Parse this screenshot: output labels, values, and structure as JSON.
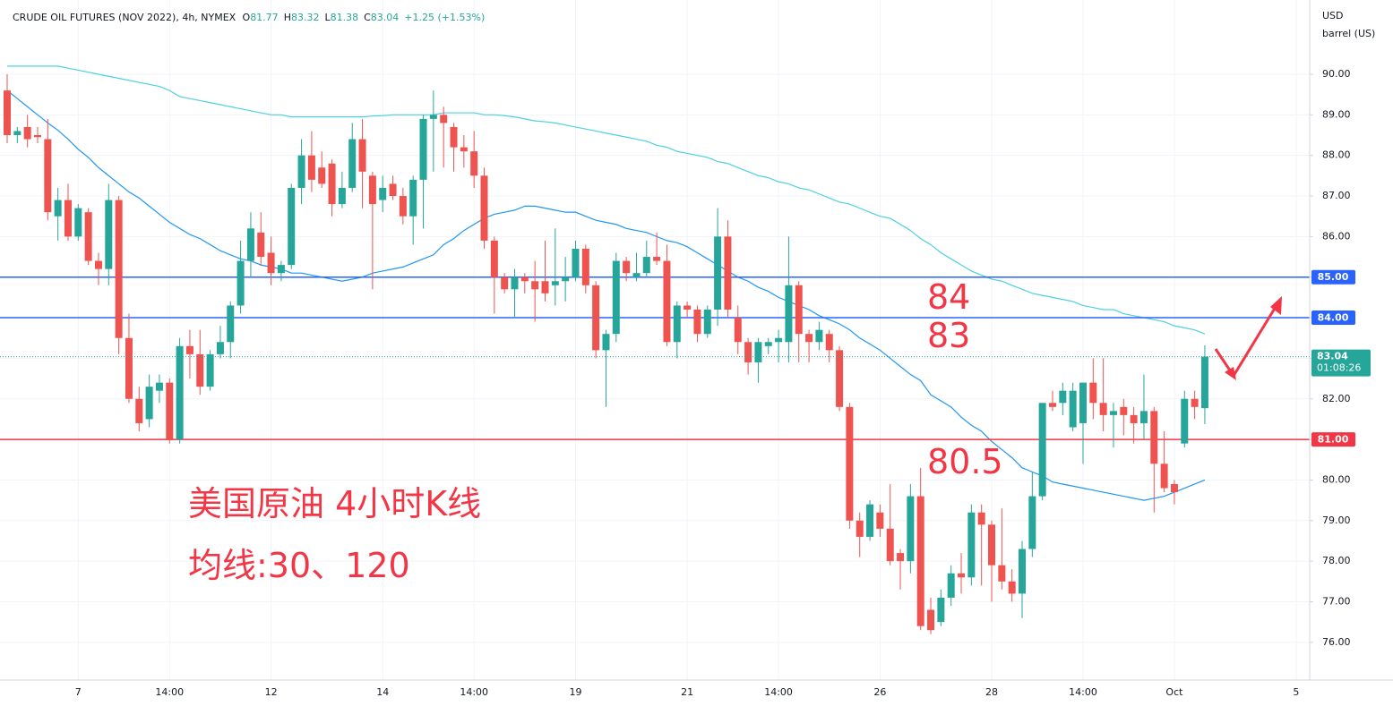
{
  "chart_data": {
    "type": "candlestick",
    "title": "CRUDE OIL FUTURES (NOV 2022), 4h, NYMEX",
    "legend_values": [
      {
        "key": "O",
        "value": 81.77
      },
      {
        "key": "H",
        "value": 83.32
      },
      {
        "key": "L",
        "value": 81.38
      },
      {
        "key": "C",
        "value": 83.04
      }
    ],
    "change": "+1.25 (+1.53%)",
    "unit": [
      "USD",
      "barrel (US)"
    ],
    "categories": [
      null,
      null,
      null,
      null,
      null,
      null,
      null,
      "7",
      null,
      null,
      null,
      null,
      null,
      null,
      null,
      null,
      "14:00",
      null,
      null,
      null,
      null,
      null,
      null,
      null,
      null,
      null,
      "12",
      null,
      null,
      null,
      null,
      null,
      null,
      null,
      null,
      null,
      null,
      "14",
      null,
      null,
      null,
      null,
      null,
      null,
      null,
      null,
      "14:00",
      null,
      null,
      null,
      null,
      null,
      null,
      null,
      null,
      null,
      "19",
      null,
      null,
      null,
      null,
      null,
      null,
      null,
      null,
      null,
      null,
      "21",
      null,
      null,
      null,
      null,
      null,
      null,
      null,
      null,
      "14:00",
      null,
      null,
      null,
      null,
      null,
      null,
      null,
      null,
      null,
      "26",
      null,
      null,
      null,
      null,
      null,
      null,
      null,
      null,
      null,
      null,
      "28",
      null,
      null,
      null,
      null,
      null,
      null,
      null,
      null,
      "14:00",
      null,
      null,
      null,
      null,
      null,
      null,
      null,
      null,
      "Oct",
      null,
      null,
      null,
      null,
      null,
      null,
      null,
      null,
      null,
      null,
      null,
      "5",
      null
    ],
    "ohlc": {
      "up_color": "#26a69a",
      "down_color": "#ef5350",
      "open": [
        89.6,
        88.5,
        88.7,
        88.5,
        88.4,
        86.5,
        86.9,
        86.0,
        86.6,
        85.4,
        85.2,
        86.9,
        83.5,
        82.0,
        81.5,
        82.2,
        82.4,
        81.0,
        83.3,
        83.1,
        82.3,
        83.1,
        83.4,
        84.3,
        85.4,
        86.1,
        85.6,
        85.1,
        85.3,
        87.2,
        88.0,
        87.7,
        87.8,
        86.8,
        87.2,
        88.4,
        87.5,
        86.9,
        87.3,
        87.0,
        86.5,
        87.4,
        88.9,
        89.0,
        88.7,
        88.2,
        88.1,
        87.5,
        85.9,
        85.0,
        84.7,
        85.0,
        84.9,
        84.9,
        84.8,
        84.9,
        85.0,
        85.7,
        84.8,
        83.2,
        83.6,
        85.4,
        85.0,
        85.1,
        85.5,
        85.4,
        83.4,
        84.3,
        84.2,
        83.6,
        84.2,
        86.0,
        84.0,
        83.4,
        82.9,
        83.3,
        83.4,
        83.4,
        84.8,
        83.6,
        83.4,
        83.6,
        83.2,
        81.8,
        79.0,
        78.6,
        79.2,
        78.8,
        78.2,
        78.0,
        79.6,
        76.8,
        76.5,
        77.1,
        77.7,
        77.6,
        79.2,
        78.9,
        77.9,
        77.5,
        77.2,
        78.3,
        79.6,
        81.9,
        81.9,
        81.3,
        81.4,
        82.4,
        81.9,
        81.6,
        81.8,
        81.6,
        81.4,
        81.7,
        80.4,
        79.9,
        80.9,
        82.0,
        81.77,
        null,
        null,
        null,
        null,
        null,
        null,
        null,
        null,
        null,
        null
      ],
      "high": [
        90.0,
        88.7,
        89.0,
        88.7,
        88.9,
        87.2,
        87.3,
        86.8,
        86.7,
        85.6,
        87.3,
        87.0,
        84.1,
        82.3,
        82.6,
        82.6,
        82.5,
        83.5,
        83.7,
        83.7,
        83.2,
        83.8,
        84.4,
        85.9,
        86.6,
        86.6,
        86.0,
        85.4,
        87.3,
        88.4,
        88.6,
        88.1,
        87.9,
        87.6,
        88.8,
        88.9,
        87.6,
        87.5,
        87.5,
        87.2,
        87.5,
        89.0,
        89.6,
        89.2,
        88.8,
        88.5,
        88.6,
        87.7,
        86.0,
        85.1,
        85.2,
        85.1,
        85.4,
        85.9,
        86.2,
        85.5,
        85.9,
        85.8,
        84.9,
        83.7,
        85.6,
        85.5,
        85.6,
        85.9,
        86.1,
        85.8,
        84.4,
        84.4,
        84.3,
        84.3,
        86.7,
        86.4,
        84.3,
        83.5,
        83.5,
        83.5,
        83.7,
        86.0,
        84.9,
        83.7,
        83.9,
        83.7,
        83.3,
        81.9,
        79.2,
        79.5,
        79.4,
        79.9,
        78.3,
        79.9,
        80.3,
        77.1,
        77.3,
        77.9,
        78.2,
        79.4,
        79.4,
        79.0,
        79.3,
        77.8,
        78.5,
        80.2,
        81.9,
        82.2,
        82.4,
        82.4,
        82.4,
        83.0,
        83.0,
        81.9,
        82.0,
        81.8,
        82.6,
        81.8,
        81.2,
        80.0,
        82.2,
        82.2,
        83.32,
        null,
        null,
        null,
        null,
        null,
        null,
        null,
        null,
        null,
        null
      ],
      "low": [
        88.3,
        88.3,
        88.2,
        88.3,
        86.4,
        85.9,
        85.9,
        85.9,
        85.3,
        84.8,
        84.8,
        83.1,
        81.9,
        81.2,
        81.3,
        81.9,
        80.9,
        80.9,
        82.5,
        82.1,
        82.2,
        83.0,
        83.0,
        84.1,
        85.0,
        85.3,
        84.8,
        84.9,
        85.2,
        86.8,
        87.1,
        87.2,
        86.5,
        86.7,
        87.1,
        86.7,
        84.7,
        86.6,
        86.9,
        86.3,
        85.8,
        86.2,
        87.6,
        87.7,
        87.6,
        87.7,
        87.2,
        85.7,
        84.1,
        84.6,
        84.0,
        84.6,
        83.9,
        84.4,
        84.3,
        84.4,
        84.9,
        84.6,
        83.0,
        81.8,
        83.4,
        84.9,
        84.9,
        85.0,
        85.3,
        83.3,
        83.0,
        84.0,
        83.4,
        83.5,
        83.8,
        84.0,
        83.1,
        82.6,
        82.4,
        83.1,
        82.9,
        82.9,
        82.9,
        82.9,
        83.2,
        82.9,
        81.7,
        78.8,
        78.1,
        78.5,
        78.6,
        77.9,
        77.3,
        77.7,
        76.3,
        76.2,
        76.4,
        76.9,
        77.2,
        77.4,
        77.4,
        77.0,
        77.3,
        77.0,
        76.6,
        78.1,
        79.5,
        81.7,
        81.6,
        81.2,
        80.4,
        81.5,
        81.2,
        80.8,
        81.1,
        80.9,
        81.0,
        79.2,
        79.7,
        79.4,
        80.8,
        81.5,
        81.38,
        null,
        null,
        null,
        null,
        null,
        null,
        null,
        null,
        null,
        null
      ],
      "close": [
        88.5,
        88.6,
        88.4,
        88.45,
        86.6,
        86.9,
        86.0,
        86.7,
        85.4,
        85.2,
        86.9,
        83.5,
        82.0,
        81.4,
        82.3,
        82.4,
        81.0,
        83.3,
        83.1,
        82.3,
        83.1,
        83.4,
        84.3,
        85.4,
        86.2,
        85.5,
        85.1,
        85.3,
        87.2,
        88.0,
        87.4,
        87.3,
        86.8,
        87.2,
        88.4,
        87.6,
        86.8,
        87.2,
        87.0,
        86.5,
        87.4,
        88.9,
        89.0,
        88.8,
        88.2,
        88.1,
        87.5,
        85.9,
        85.0,
        84.7,
        85.0,
        84.9,
        84.7,
        84.6,
        84.9,
        85.0,
        85.7,
        84.8,
        83.2,
        83.6,
        85.4,
        85.1,
        85.1,
        85.5,
        85.4,
        83.4,
        84.3,
        84.2,
        83.6,
        84.2,
        86.0,
        84.2,
        83.4,
        82.9,
        83.4,
        83.4,
        83.5,
        84.8,
        83.6,
        83.4,
        83.7,
        83.2,
        81.8,
        79.0,
        78.6,
        79.4,
        78.8,
        78.0,
        78.0,
        79.6,
        76.4,
        76.3,
        77.1,
        77.7,
        77.6,
        79.2,
        78.9,
        77.9,
        77.5,
        77.2,
        78.3,
        79.6,
        81.9,
        81.8,
        82.2,
        82.2,
        82.4,
        81.9,
        81.6,
        81.7,
        81.6,
        81.4,
        81.7,
        80.4,
        79.8,
        79.7,
        82.0,
        81.8,
        83.04,
        null,
        null,
        null,
        null,
        null,
        null,
        null,
        null,
        null,
        null
      ]
    },
    "series": [
      {
        "color": "#2196f3",
        "values": [
          89.6,
          89.4,
          89.2,
          89.0,
          88.8,
          88.62,
          88.4,
          88.15,
          87.95,
          87.7,
          87.5,
          87.3,
          87.1,
          86.95,
          86.75,
          86.55,
          86.35,
          86.2,
          86.05,
          85.95,
          85.8,
          85.65,
          85.55,
          85.45,
          85.4,
          85.3,
          85.25,
          85.2,
          85.1,
          85.1,
          85.05,
          85.0,
          84.95,
          84.9,
          84.95,
          85.0,
          85.1,
          85.15,
          85.2,
          85.25,
          85.35,
          85.45,
          85.55,
          85.8,
          85.95,
          86.15,
          86.3,
          86.45,
          86.55,
          86.6,
          86.65,
          86.75,
          86.75,
          86.7,
          86.65,
          86.6,
          86.6,
          86.5,
          86.4,
          86.35,
          86.3,
          86.2,
          86.15,
          86.1,
          86.0,
          85.9,
          85.85,
          85.75,
          85.6,
          85.45,
          85.3,
          85.15,
          85.0,
          84.9,
          84.75,
          84.65,
          84.5,
          84.4,
          84.3,
          84.2,
          84.05,
          83.95,
          83.85,
          83.7,
          83.5,
          83.35,
          83.2,
          83.0,
          82.8,
          82.6,
          82.45,
          82.1,
          81.95,
          81.8,
          81.55,
          81.35,
          81.2,
          80.95,
          80.75,
          80.55,
          80.3,
          80.2,
          80.1,
          79.95,
          79.9,
          79.85,
          79.8,
          79.75,
          79.7,
          79.65,
          79.6,
          79.55,
          79.5,
          79.55,
          79.6,
          79.7,
          79.8,
          79.9,
          80.0,
          null,
          null,
          null,
          null,
          null,
          null,
          null,
          null,
          null,
          null
        ]
      },
      {
        "color": "#4dd0e1",
        "values": [
          90.2,
          90.2,
          90.2,
          90.2,
          90.2,
          90.2,
          90.15,
          90.1,
          90.05,
          90.0,
          89.95,
          89.9,
          89.85,
          89.8,
          89.75,
          89.7,
          89.6,
          89.45,
          89.4,
          89.35,
          89.3,
          89.25,
          89.2,
          89.15,
          89.1,
          89.05,
          89.0,
          89.0,
          88.95,
          88.95,
          88.95,
          88.95,
          88.95,
          88.95,
          88.95,
          88.95,
          88.97,
          88.98,
          89.0,
          89.0,
          89.0,
          89.0,
          89.0,
          89.05,
          89.05,
          89.05,
          89.05,
          89.0,
          89.0,
          88.98,
          88.95,
          88.9,
          88.85,
          88.83,
          88.8,
          88.75,
          88.7,
          88.65,
          88.6,
          88.55,
          88.5,
          88.45,
          88.4,
          88.35,
          88.25,
          88.2,
          88.1,
          88.05,
          88.0,
          87.95,
          87.85,
          87.8,
          87.7,
          87.6,
          87.5,
          87.45,
          87.35,
          87.3,
          87.2,
          87.15,
          87.05,
          86.95,
          86.85,
          86.8,
          86.7,
          86.6,
          86.5,
          86.45,
          86.3,
          86.15,
          85.95,
          85.8,
          85.6,
          85.45,
          85.3,
          85.15,
          85.05,
          84.95,
          84.9,
          84.8,
          84.7,
          84.6,
          84.55,
          84.5,
          84.45,
          84.4,
          84.3,
          84.25,
          84.2,
          84.2,
          84.1,
          84.05,
          84.0,
          83.95,
          83.9,
          83.8,
          83.75,
          83.7,
          83.6,
          null,
          null,
          null,
          null,
          null,
          null,
          null,
          null,
          null,
          null
        ]
      }
    ],
    "ylim": [
      75.07,
      91.83
    ],
    "yticks": [
      {
        "value": 76,
        "label": "76.00"
      },
      {
        "value": 77,
        "label": "77.00"
      },
      {
        "value": 78,
        "label": "78.00"
      },
      {
        "value": 79,
        "label": "79.00"
      },
      {
        "value": 80,
        "label": "80.00"
      },
      {
        "value": 81,
        "label": "81.00"
      },
      {
        "value": 82,
        "label": "82.00"
      },
      {
        "value": 83,
        "label": "83.00"
      },
      {
        "value": 84,
        "label": "84.00"
      },
      {
        "value": 85,
        "label": "85.00"
      },
      {
        "value": 86,
        "label": "86.00"
      },
      {
        "value": 87,
        "label": "87.00"
      },
      {
        "value": 88,
        "label": "88.00"
      },
      {
        "value": 89,
        "label": "89.00"
      },
      {
        "value": 90,
        "label": "90.00"
      }
    ],
    "grid": true,
    "price_lines": [
      {
        "value": 85,
        "label": "85.00",
        "color": "#2962ff"
      },
      {
        "value": 84,
        "label": "84.00",
        "color": "#2962ff"
      },
      {
        "value": 81,
        "label": "81.00",
        "color": "#f23645"
      }
    ],
    "last_price": {
      "value": 83.04,
      "label": "83.04",
      "countdown": "01:08:26",
      "color": "#26a69a"
    },
    "annotations": [
      "84",
      "83",
      "80.5",
      "美国原油 4小时K线",
      "均线:30、120"
    ],
    "annotation_color": "#f23645"
  }
}
